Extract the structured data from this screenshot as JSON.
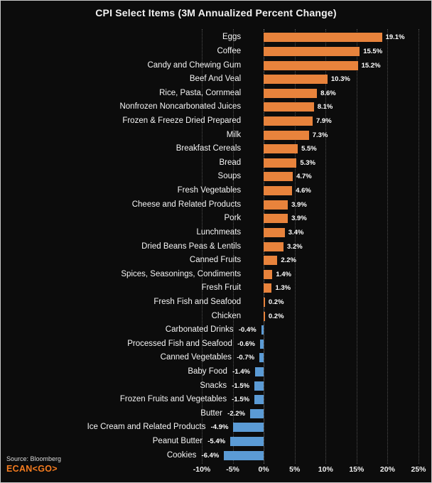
{
  "chart_data": {
    "type": "bar",
    "orientation": "horizontal",
    "title": "CPI Select Items (3M Annualized Percent Change)",
    "categories": [
      "Eggs",
      "Coffee",
      "Candy and Chewing Gum",
      "Beef And Veal",
      "Rice, Pasta, Cornmeal",
      "Nonfrozen Noncarbonated Juices",
      "Frozen & Freeze Dried Prepared",
      "Milk",
      "Breakfast Cereals",
      "Bread",
      "Soups",
      "Fresh Vegetables",
      "Cheese and Related Products",
      "Pork",
      "Lunchmeats",
      "Dried Beans Peas & Lentils",
      "Canned Fruits",
      "Spices, Seasonings, Condiments",
      "Fresh Fruit",
      "Fresh Fish and Seafood",
      "Chicken",
      "Carbonated Drinks",
      "Processed Fish and Seafood",
      "Canned Vegetables",
      "Baby Food",
      "Snacks",
      "Frozen Fruits and Vegetables",
      "Butter",
      "Ice Cream and Related Products",
      "Peanut Butter",
      "Cookies"
    ],
    "values": [
      19.1,
      15.5,
      15.2,
      10.3,
      8.6,
      8.1,
      7.9,
      7.3,
      5.5,
      5.3,
      4.7,
      4.6,
      3.9,
      3.9,
      3.4,
      3.2,
      2.2,
      1.4,
      1.3,
      0.2,
      0.2,
      -0.4,
      -0.6,
      -0.7,
      -1.4,
      -1.5,
      -1.5,
      -2.2,
      -4.9,
      -5.4,
      -6.4
    ],
    "value_suffix": "%",
    "xlim": [
      -10,
      25
    ],
    "x_ticks": [
      -10,
      -5,
      0,
      5,
      10,
      15,
      20,
      25
    ],
    "x_tick_labels": [
      "-10%",
      "-5%",
      "0%",
      "5%",
      "10%",
      "15%",
      "20%",
      "25%"
    ],
    "grid": "dotted-vertical",
    "legend": "none",
    "colors": {
      "positive": "#E8833C",
      "negative": "#5B9BD5",
      "background": "#0c0c0c",
      "text": "#FFFFFF",
      "grid": "#4f4f4f"
    }
  },
  "footer": {
    "source": "Source: Bloomberg",
    "brand": "ECAN<GO>",
    "brand_color": "#F57C1F"
  }
}
